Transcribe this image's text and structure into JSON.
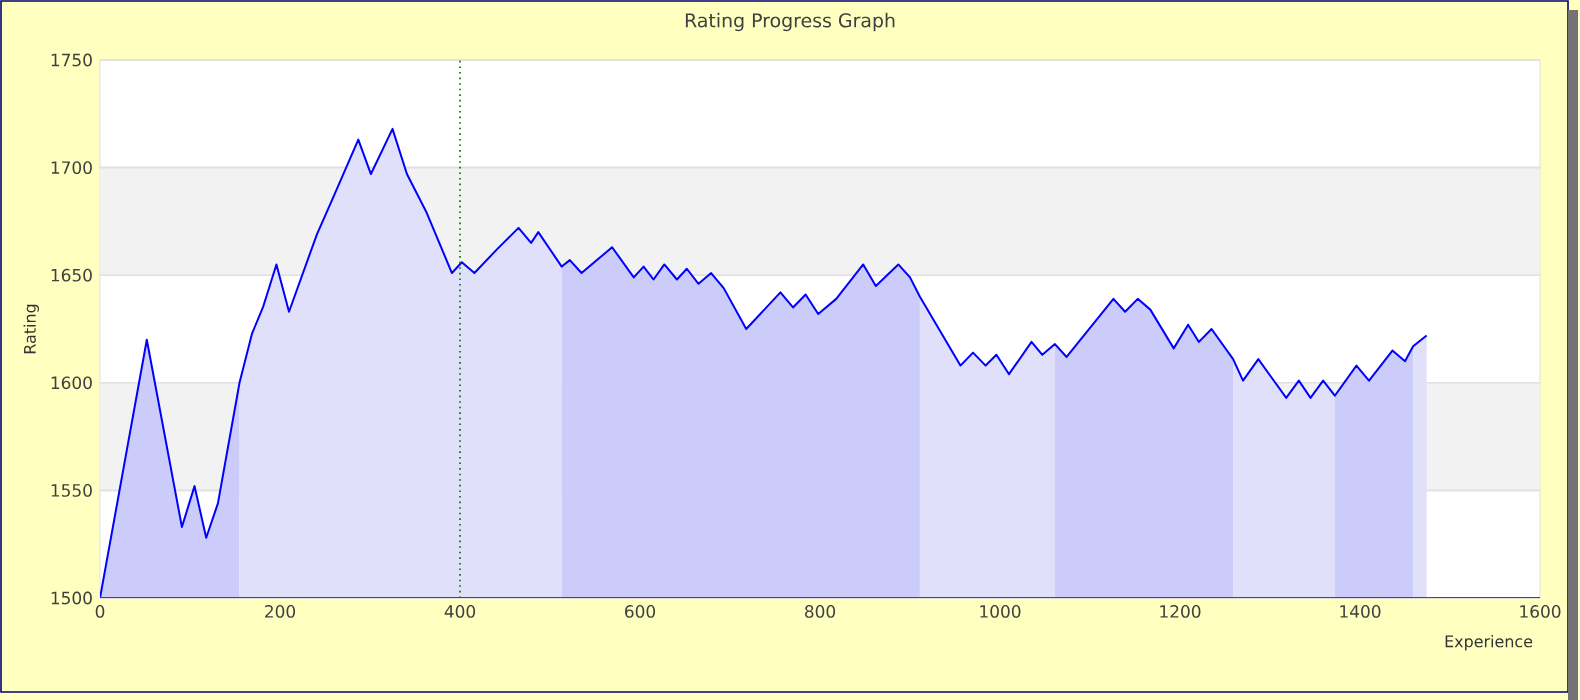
{
  "chart_data": {
    "type": "area",
    "title": "Rating Progress Graph",
    "xlabel": "Experience",
    "ylabel": "Rating",
    "xlim": [
      0,
      1600
    ],
    "xticks": [
      0,
      200,
      400,
      600,
      800,
      1000,
      1200,
      1400,
      1600
    ],
    "ylim": [
      1500,
      1750
    ],
    "yticks": [
      1500,
      1550,
      1600,
      1650,
      1700,
      1750
    ],
    "grid": "y",
    "bands": [
      {
        "axis": "y",
        "from": 1550,
        "to": 1600,
        "color": "#f2f2f2"
      },
      {
        "axis": "y",
        "from": 1650,
        "to": 1700,
        "color": "#f2f2f2"
      }
    ],
    "ref_lines": [
      {
        "axis": "x",
        "value": 400,
        "color": "#006400",
        "line_style": "dotted"
      }
    ],
    "series": [
      {
        "color": "#ccccfa",
        "x": [
          0,
          52,
          91,
          105,
          118,
          131,
          155
        ],
        "values": [
          1500,
          1620,
          1533,
          1552,
          1528,
          1544,
          1600
        ]
      },
      {
        "color": "#e0e0fa",
        "x": [
          155,
          169,
          181,
          196,
          210,
          241,
          259,
          287,
          301,
          325,
          341,
          363,
          391,
          402,
          416,
          441,
          465,
          479,
          487,
          513
        ],
        "values": [
          1600,
          1623,
          1635,
          1655,
          1633,
          1669,
          1686,
          1713,
          1697,
          1718,
          1697,
          1679,
          1651,
          1656,
          1651,
          1662,
          1672,
          1665,
          1670,
          1654
        ]
      },
      {
        "color": "#ccccfa",
        "x": [
          513,
          522,
          535,
          569,
          593,
          604,
          615,
          627,
          641,
          652,
          665,
          679,
          693,
          718,
          756,
          770,
          784,
          798,
          818,
          848,
          862,
          887,
          900,
          911
        ],
        "values": [
          1654,
          1657,
          1651,
          1663,
          1649,
          1654,
          1648,
          1655,
          1648,
          1653,
          1646,
          1651,
          1644,
          1625,
          1642,
          1635,
          1641,
          1632,
          1639,
          1655,
          1645,
          1655,
          1649,
          1640
        ]
      },
      {
        "color": "#e0e0fa",
        "x": [
          911,
          956,
          970,
          984,
          996,
          1010,
          1035,
          1047,
          1061
        ],
        "values": [
          1640,
          1608,
          1614,
          1608,
          1613,
          1604,
          1619,
          1613,
          1618
        ]
      },
      {
        "color": "#ccccfa",
        "x": [
          1061,
          1074,
          1126,
          1139,
          1153,
          1167,
          1193,
          1209,
          1221,
          1235,
          1259
        ],
        "values": [
          1618,
          1612,
          1639,
          1633,
          1639,
          1634,
          1616,
          1627,
          1619,
          1625,
          1611
        ]
      },
      {
        "color": "#e0e0fa",
        "x": [
          1259,
          1270,
          1287,
          1318,
          1332,
          1345,
          1359,
          1372
        ],
        "values": [
          1611,
          1601,
          1611,
          1593,
          1601,
          1593,
          1601,
          1594
        ]
      },
      {
        "color": "#ccccfa",
        "x": [
          1372,
          1396,
          1410,
          1436,
          1450,
          1459
        ],
        "values": [
          1594,
          1608,
          1601,
          1615,
          1610,
          1617
        ]
      },
      {
        "color": "#e0e0fa",
        "x": [
          1459,
          1474
        ],
        "values": [
          1617,
          1622
        ]
      },
      {
        "type": "line",
        "color": "#0000ff",
        "x": [
          0,
          52,
          91,
          105,
          118,
          131,
          155,
          169,
          181,
          196,
          210,
          241,
          259,
          287,
          301,
          325,
          341,
          363,
          391,
          402,
          416,
          441,
          465,
          479,
          487,
          513,
          522,
          535,
          569,
          593,
          604,
          615,
          627,
          641,
          652,
          665,
          679,
          693,
          718,
          756,
          770,
          784,
          798,
          818,
          848,
          862,
          887,
          900,
          911,
          956,
          970,
          984,
          996,
          1010,
          1035,
          1047,
          1061,
          1074,
          1126,
          1139,
          1153,
          1167,
          1193,
          1209,
          1221,
          1235,
          1259,
          1270,
          1287,
          1318,
          1332,
          1345,
          1359,
          1372,
          1396,
          1410,
          1436,
          1450,
          1459,
          1474
        ],
        "values": [
          1500,
          1620,
          1533,
          1552,
          1528,
          1544,
          1600,
          1623,
          1635,
          1655,
          1633,
          1669,
          1686,
          1713,
          1697,
          1718,
          1697,
          1679,
          1651,
          1656,
          1651,
          1662,
          1672,
          1665,
          1670,
          1654,
          1657,
          1651,
          1663,
          1649,
          1654,
          1648,
          1655,
          1648,
          1653,
          1646,
          1651,
          1644,
          1625,
          1642,
          1635,
          1641,
          1632,
          1639,
          1655,
          1645,
          1655,
          1649,
          1640,
          1608,
          1614,
          1608,
          1613,
          1604,
          1619,
          1613,
          1618,
          1612,
          1639,
          1633,
          1639,
          1634,
          1616,
          1627,
          1619,
          1625,
          1611,
          1601,
          1611,
          1593,
          1601,
          1593,
          1601,
          1594,
          1608,
          1601,
          1615,
          1610,
          1617,
          1622
        ]
      }
    ]
  }
}
